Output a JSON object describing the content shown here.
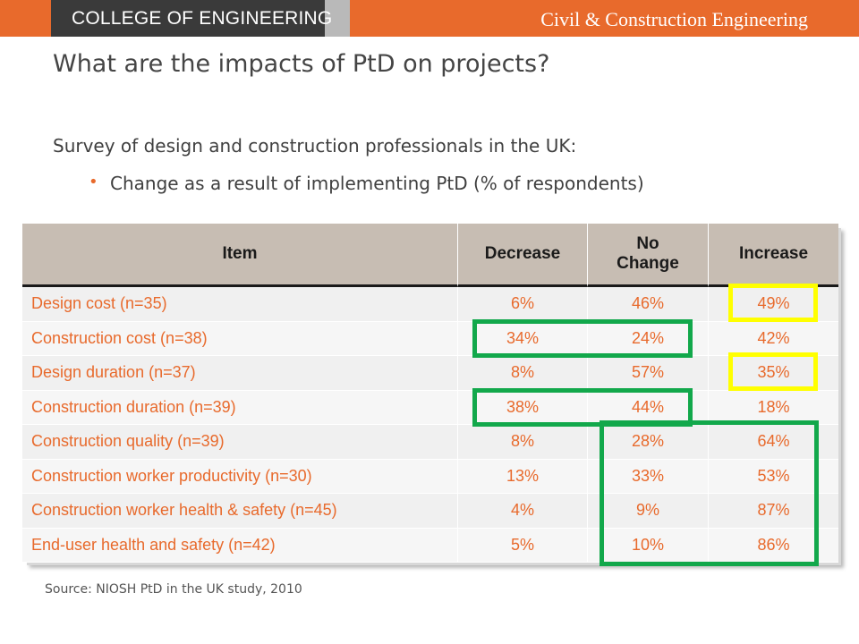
{
  "header": {
    "college": "COLLEGE OF ENGINEERING",
    "department": "Civil & Construction Engineering",
    "colors": {
      "orange": "#e86a2c",
      "dark": "#3a3a3a",
      "grey": "#b9b9b9"
    }
  },
  "slide": {
    "title": "What are the impacts of PtD on projects?",
    "survey_text": "Survey of design and construction professionals in the UK:",
    "bullet_text": "Change as a result of implementing PtD (% of respondents)"
  },
  "table": {
    "headers": [
      "Item",
      "Decrease",
      "No Change",
      "Increase"
    ],
    "header_no_change_lines": [
      "No",
      "Change"
    ],
    "rows": [
      {
        "item": "Design cost (n=35)",
        "decrease": "6%",
        "no_change": "46%",
        "increase": "49%"
      },
      {
        "item": "Construction cost (n=38)",
        "decrease": "34%",
        "no_change": "24%",
        "increase": "42%"
      },
      {
        "item": "Design duration (n=37)",
        "decrease": "8%",
        "no_change": "57%",
        "increase": "35%"
      },
      {
        "item": "Construction duration (n=39)",
        "decrease": "38%",
        "no_change": "44%",
        "increase": "18%"
      },
      {
        "item": "Construction quality (n=39)",
        "decrease": "8%",
        "no_change": "28%",
        "increase": "64%"
      },
      {
        "item": "Construction worker productivity (n=30)",
        "decrease": "13%",
        "no_change": "33%",
        "increase": "53%"
      },
      {
        "item": "Construction worker health & safety (n=45)",
        "decrease": "4%",
        "no_change": "9%",
        "increase": "87%"
      },
      {
        "item": "End-user health and safety (n=42)",
        "decrease": "5%",
        "no_change": "10%",
        "increase": "86%"
      }
    ],
    "highlight_colors": {
      "yellow": "#ffff00",
      "green": "#12a84b"
    }
  },
  "footer": {
    "source": "Source: NIOSH PtD in the UK study, 2010"
  }
}
